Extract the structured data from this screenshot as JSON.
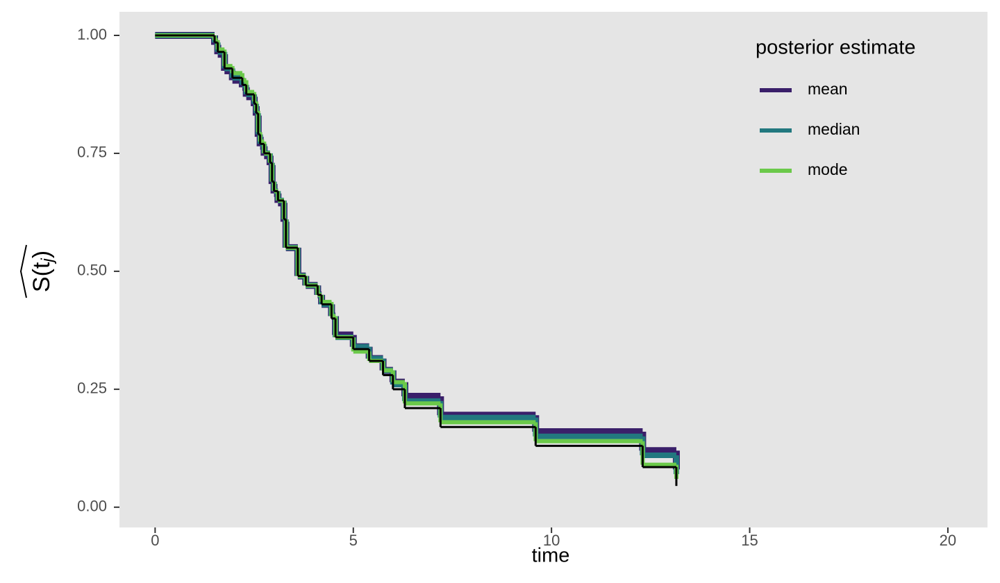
{
  "chart_data": {
    "type": "step",
    "xlabel": "time",
    "ylabel": {
      "main": "S(t",
      "sub": "j",
      "close": ")"
    },
    "legend_title": "posterior estimate",
    "legend_position": "top-right",
    "grid": false,
    "xlim": [
      -0.9,
      21
    ],
    "ylim": [
      -0.043,
      1.05
    ],
    "xticks": [
      0,
      5,
      10,
      15,
      20
    ],
    "yticks": [
      {
        "value": 0,
        "label": "0.00"
      },
      {
        "value": 0.25,
        "label": "0.25"
      },
      {
        "value": 0.5,
        "label": "0.50"
      },
      {
        "value": 0.75,
        "label": "0.75"
      },
      {
        "value": 1,
        "label": "1.00"
      }
    ],
    "x": [
      0,
      1.5,
      1.58,
      1.75,
      1.95,
      2.2,
      2.3,
      2.5,
      2.55,
      2.6,
      2.65,
      2.75,
      2.9,
      2.95,
      3.0,
      3.1,
      3.25,
      3.3,
      3.6,
      3.8,
      4.1,
      4.2,
      4.45,
      4.55,
      5.0,
      5.4,
      5.75,
      6.0,
      6.3,
      7.2,
      9.6,
      12.3,
      13.15
    ],
    "series": [
      {
        "name": "mean",
        "color": "#3a1f6a",
        "width": 10,
        "values": [
          1,
          0.98,
          0.96,
          0.925,
          0.905,
          0.89,
          0.87,
          0.85,
          0.83,
          0.785,
          0.765,
          0.745,
          0.725,
          0.685,
          0.665,
          0.645,
          0.605,
          0.55,
          0.49,
          0.47,
          0.45,
          0.43,
          0.405,
          0.365,
          0.34,
          0.315,
          0.29,
          0.265,
          0.235,
          0.195,
          0.16,
          0.12,
          0.08
        ]
      },
      {
        "name": "median",
        "color": "#22787f",
        "width": 8,
        "values": [
          1,
          0.985,
          0.965,
          0.93,
          0.91,
          0.895,
          0.875,
          0.855,
          0.835,
          0.79,
          0.77,
          0.75,
          0.73,
          0.69,
          0.67,
          0.65,
          0.61,
          0.55,
          0.49,
          0.47,
          0.45,
          0.43,
          0.405,
          0.36,
          0.34,
          0.315,
          0.29,
          0.26,
          0.225,
          0.19,
          0.15,
          0.11,
          0.07
        ]
      },
      {
        "name": "mode",
        "color": "#6bc94a",
        "width": 6,
        "values": [
          1,
          0.99,
          0.97,
          0.935,
          0.92,
          0.905,
          0.88,
          0.86,
          0.84,
          0.795,
          0.775,
          0.75,
          0.73,
          0.69,
          0.67,
          0.65,
          0.61,
          0.55,
          0.49,
          0.47,
          0.45,
          0.435,
          0.405,
          0.36,
          0.33,
          0.31,
          0.29,
          0.265,
          0.22,
          0.18,
          0.14,
          0.09,
          0.06
        ]
      },
      {
        "color": "#000000",
        "width": 3,
        "values": [
          1,
          0.985,
          0.965,
          0.93,
          0.91,
          0.895,
          0.875,
          0.855,
          0.835,
          0.79,
          0.77,
          0.75,
          0.73,
          0.69,
          0.67,
          0.65,
          0.61,
          0.55,
          0.49,
          0.47,
          0.45,
          0.43,
          0.4,
          0.36,
          0.335,
          0.31,
          0.28,
          0.25,
          0.21,
          0.17,
          0.13,
          0.085,
          0.045
        ]
      }
    ]
  }
}
